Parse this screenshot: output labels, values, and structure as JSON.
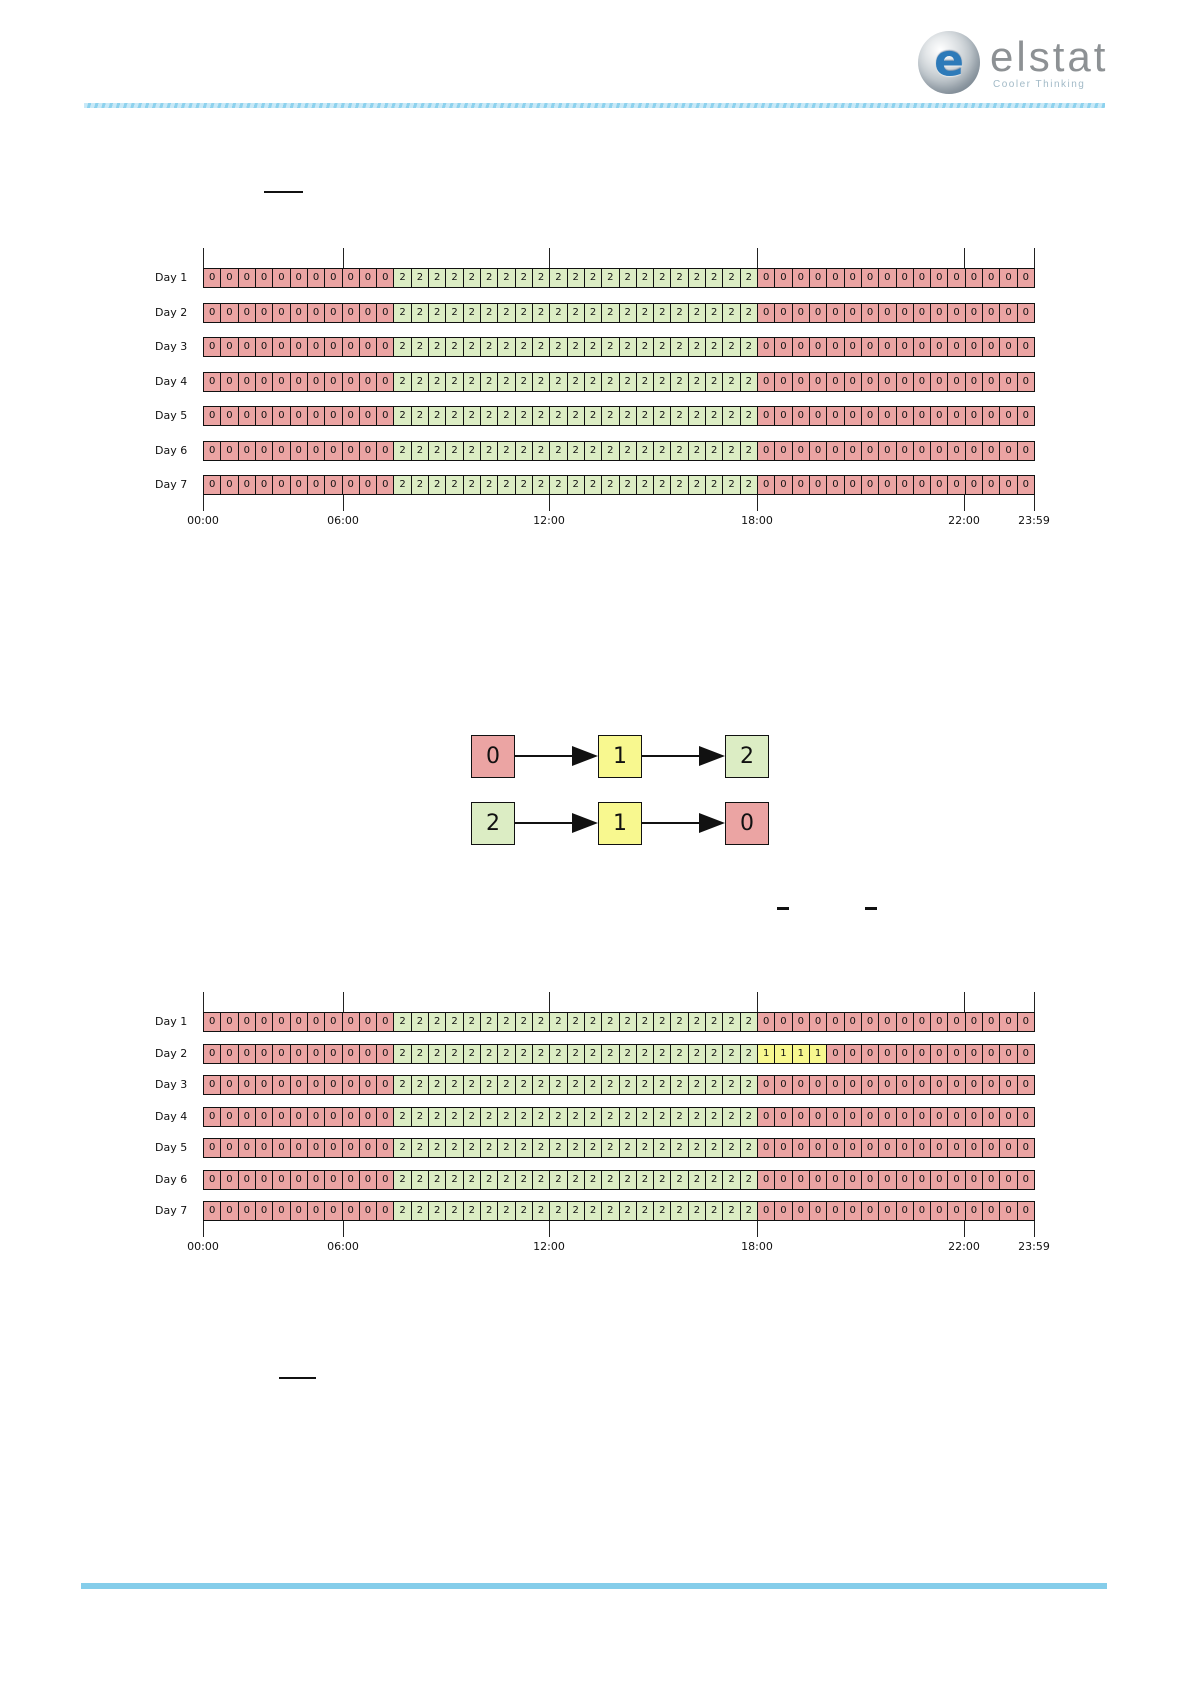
{
  "header": {
    "logo_text": "elstat",
    "tagline": "Cooler Thinking",
    "logo_letter": "e"
  },
  "colors": {
    "state0": "#eba4a3",
    "state1": "#f8f88f",
    "state2": "#dcedc4",
    "rule_blue": "#85cdea",
    "border": "#111111"
  },
  "axis": {
    "labels": [
      "00:00",
      "06:00",
      "12:00",
      "18:00",
      "22:00",
      "23:59"
    ],
    "tick_offsets": [
      0,
      140,
      346,
      554,
      761,
      831
    ]
  },
  "patterns": {
    "A": [
      {
        "v": "0",
        "n": 11
      },
      {
        "v": "2",
        "n": 21
      },
      {
        "v": "0",
        "n": 16
      }
    ],
    "B": [
      {
        "v": "0",
        "n": 11
      },
      {
        "v": "2",
        "n": 21
      },
      {
        "v": "1",
        "n": 4
      },
      {
        "v": "0",
        "n": 12
      }
    ]
  },
  "grid1": {
    "day_labels": [
      "Day 1",
      "Day 2",
      "Day 3",
      "Day 4",
      "Day 5",
      "Day 6",
      "Day 7"
    ],
    "rows": [
      "A",
      "A",
      "A",
      "A",
      "A",
      "A",
      "A"
    ]
  },
  "grid2": {
    "day_labels": [
      "Day 1",
      "Day 2",
      "Day 3",
      "Day 4",
      "Day 5",
      "Day 6",
      "Day 7"
    ],
    "rows": [
      "A",
      "B",
      "A",
      "A",
      "A",
      "A",
      "A"
    ]
  },
  "diagram": {
    "rows": [
      {
        "boxes": [
          {
            "label": "0"
          },
          {
            "label": "1"
          },
          {
            "label": "2"
          }
        ]
      },
      {
        "boxes": [
          {
            "label": "2"
          },
          {
            "label": "1"
          },
          {
            "label": "0"
          }
        ]
      }
    ]
  },
  "chart_data": [
    {
      "type": "heatmap",
      "title": "",
      "rows": [
        "Day 1",
        "Day 2",
        "Day 3",
        "Day 4",
        "Day 5",
        "Day 6",
        "Day 7"
      ],
      "x_ticks": [
        "00:00",
        "06:00",
        "12:00",
        "18:00",
        "22:00",
        "23:59"
      ],
      "cells_per_row": 48,
      "cell_minutes": 30,
      "row_patterns": [
        "A",
        "A",
        "A",
        "A",
        "A",
        "A",
        "A"
      ],
      "legend": {
        "0": "#eba4a3",
        "1": "#f8f88f",
        "2": "#dcedc4"
      }
    },
    {
      "type": "heatmap",
      "title": "",
      "rows": [
        "Day 1",
        "Day 2",
        "Day 3",
        "Day 4",
        "Day 5",
        "Day 6",
        "Day 7"
      ],
      "x_ticks": [
        "00:00",
        "06:00",
        "12:00",
        "18:00",
        "22:00",
        "23:59"
      ],
      "cells_per_row": 48,
      "cell_minutes": 30,
      "row_patterns": [
        "A",
        "B",
        "A",
        "A",
        "A",
        "A",
        "A"
      ],
      "legend": {
        "0": "#eba4a3",
        "1": "#f8f88f",
        "2": "#dcedc4"
      }
    }
  ]
}
